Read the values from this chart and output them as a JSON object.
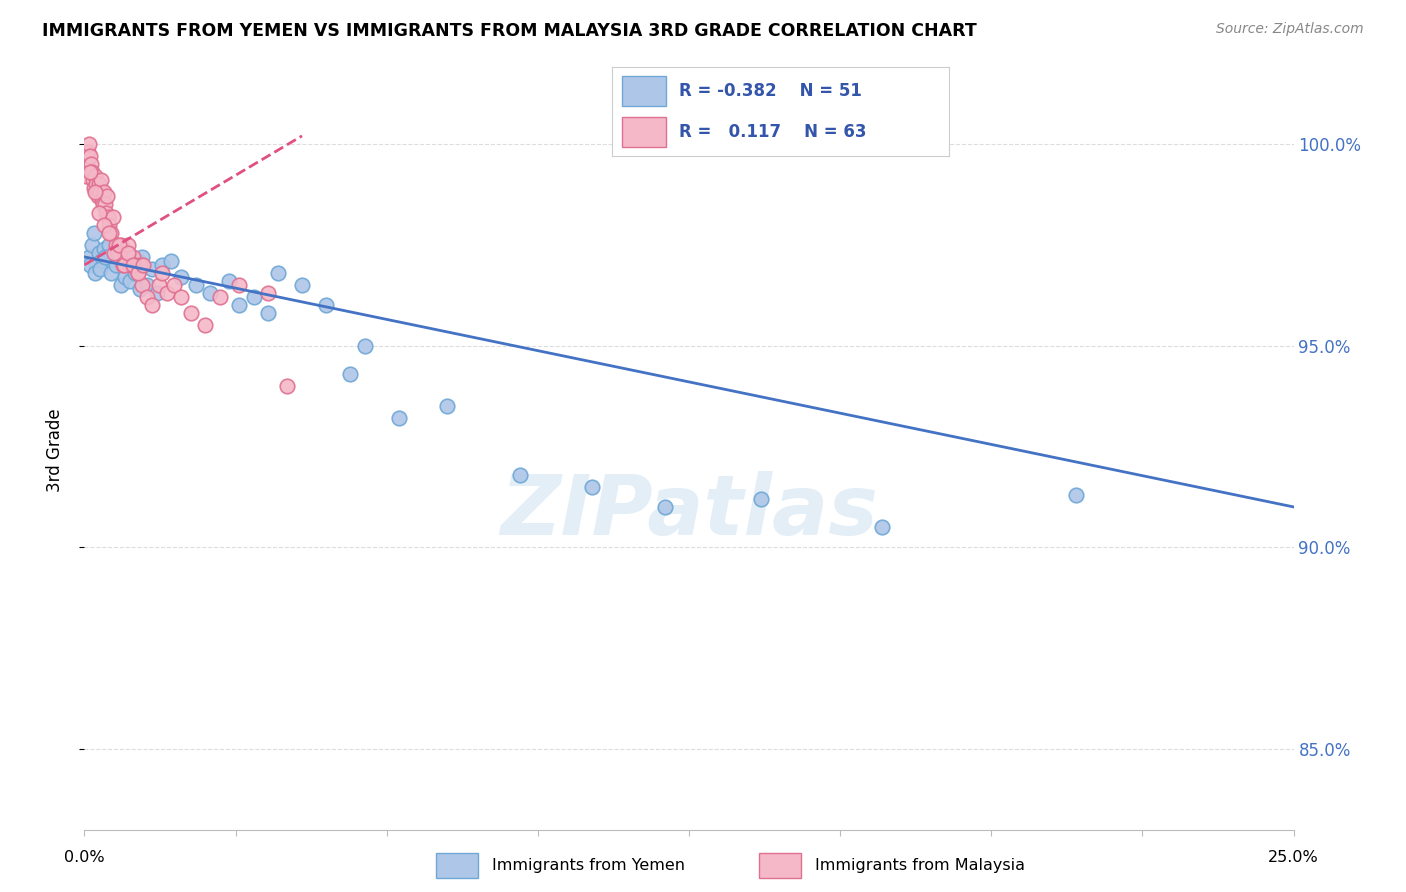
{
  "title": "IMMIGRANTS FROM YEMEN VS IMMIGRANTS FROM MALAYSIA 3RD GRADE CORRELATION CHART",
  "source": "Source: ZipAtlas.com",
  "ylabel": "3rd Grade",
  "yticks": [
    85.0,
    90.0,
    95.0,
    100.0
  ],
  "ytick_labels": [
    "85.0%",
    "90.0%",
    "95.0%",
    "100.0%"
  ],
  "xlim": [
    0.0,
    25.0
  ],
  "ylim": [
    83.0,
    101.8
  ],
  "legend_blue_r": "-0.382",
  "legend_blue_n": "51",
  "legend_pink_r": "0.117",
  "legend_pink_n": "63",
  "blue_color": "#aec6e8",
  "blue_edge": "#6fa8d6",
  "pink_color": "#f4b8c8",
  "pink_edge": "#e07090",
  "trend_blue": "#4472c4",
  "trend_pink": "#e05080",
  "blue_scatter_x": [
    0.1,
    0.15,
    0.2,
    0.25,
    0.3,
    0.35,
    0.4,
    0.5,
    0.6,
    0.7,
    0.8,
    0.9,
    1.0,
    1.1,
    1.2,
    1.4,
    1.6,
    1.8,
    2.0,
    2.3,
    2.6,
    3.0,
    3.5,
    4.0,
    4.5,
    5.0,
    5.5,
    6.5,
    7.5,
    9.0,
    10.5,
    12.0,
    14.0,
    16.5,
    20.5,
    0.12,
    0.22,
    0.32,
    0.42,
    0.55,
    0.65,
    0.75,
    0.85,
    0.95,
    1.05,
    1.15,
    1.3,
    1.5,
    3.2,
    3.8,
    5.8
  ],
  "blue_scatter_y": [
    97.2,
    97.5,
    97.8,
    97.0,
    97.3,
    97.1,
    97.4,
    97.5,
    97.2,
    97.0,
    97.3,
    97.0,
    96.8,
    97.1,
    97.2,
    96.9,
    97.0,
    97.1,
    96.7,
    96.5,
    96.3,
    96.6,
    96.2,
    96.8,
    96.5,
    96.0,
    94.3,
    93.2,
    93.5,
    91.8,
    91.5,
    91.0,
    91.2,
    90.5,
    91.3,
    97.0,
    96.8,
    96.9,
    97.2,
    96.8,
    97.0,
    96.5,
    96.7,
    96.6,
    96.8,
    96.4,
    96.5,
    96.3,
    96.0,
    95.8,
    95.0
  ],
  "pink_scatter_x": [
    0.04,
    0.06,
    0.08,
    0.1,
    0.12,
    0.14,
    0.16,
    0.18,
    0.2,
    0.22,
    0.24,
    0.26,
    0.28,
    0.3,
    0.32,
    0.34,
    0.36,
    0.38,
    0.4,
    0.42,
    0.44,
    0.46,
    0.48,
    0.5,
    0.55,
    0.6,
    0.65,
    0.7,
    0.75,
    0.8,
    0.85,
    0.9,
    0.95,
    1.0,
    1.05,
    1.1,
    1.15,
    1.2,
    1.3,
    1.4,
    1.55,
    1.7,
    1.85,
    2.0,
    2.2,
    2.5,
    2.8,
    3.2,
    3.8,
    4.2,
    0.11,
    0.21,
    0.31,
    0.41,
    0.51,
    0.61,
    0.71,
    0.81,
    0.91,
    1.01,
    1.11,
    1.21,
    1.6
  ],
  "pink_scatter_y": [
    99.2,
    99.5,
    99.8,
    100.0,
    99.7,
    99.5,
    99.3,
    99.1,
    98.9,
    99.2,
    99.0,
    98.8,
    98.7,
    99.0,
    98.8,
    99.1,
    98.6,
    98.5,
    98.8,
    98.5,
    98.3,
    98.7,
    98.2,
    98.0,
    97.8,
    98.2,
    97.5,
    97.3,
    97.5,
    97.0,
    97.2,
    97.5,
    97.0,
    97.2,
    97.0,
    96.8,
    97.0,
    96.5,
    96.2,
    96.0,
    96.5,
    96.3,
    96.5,
    96.2,
    95.8,
    95.5,
    96.2,
    96.5,
    96.3,
    94.0,
    99.3,
    98.8,
    98.3,
    98.0,
    97.8,
    97.3,
    97.5,
    97.0,
    97.3,
    97.0,
    96.8,
    97.0,
    96.8
  ],
  "blue_trend_x": [
    0.0,
    25.0
  ],
  "blue_trend_y": [
    97.2,
    91.0
  ],
  "pink_trend_x": [
    0.0,
    4.5
  ],
  "pink_trend_y": [
    97.0,
    100.2
  ]
}
